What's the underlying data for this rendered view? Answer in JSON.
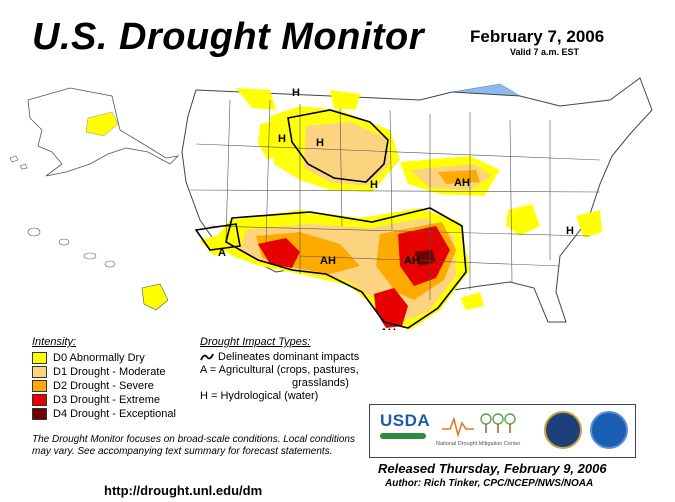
{
  "header": {
    "title": "U.S. Drought Monitor",
    "date": "February 7, 2006",
    "valid": "Valid 7 a.m. EST"
  },
  "colors": {
    "D0": "#ffff00",
    "D1": "#fcd37f",
    "D2": "#ffaa00",
    "D3": "#e60000",
    "D4": "#730000",
    "water": "#8fb8ee",
    "border": "#555555"
  },
  "legend": {
    "title": "Intensity:",
    "items": [
      {
        "code": "D0",
        "label": "D0 Abnormally Dry",
        "color": "#ffff00"
      },
      {
        "code": "D1",
        "label": "D1 Drought - Moderate",
        "color": "#fcd37f"
      },
      {
        "code": "D2",
        "label": "D2 Drought - Severe",
        "color": "#ffaa00"
      },
      {
        "code": "D3",
        "label": "D3 Drought - Extreme",
        "color": "#e60000"
      },
      {
        "code": "D4",
        "label": "D4 Drought - Exceptional",
        "color": "#730000"
      }
    ]
  },
  "impacts": {
    "title": "Drought Impact Types:",
    "delineates": "Delineates dominant impacts",
    "agricultural": "A = Agricultural (crops, pastures,",
    "agricultural_cont": "grasslands)",
    "hydrological": "H = Hydrological (water)"
  },
  "map_labels": {
    "H": "H",
    "A": "A",
    "AH": "AH"
  },
  "note": "The Drought Monitor focuses on broad-scale conditions. Local conditions may vary. See accompanying text summary for forecast statements.",
  "url": "http://drought.unl.edu/dm",
  "logos": {
    "usda": "USDA",
    "ndmc": "National Drought Mitigation Center"
  },
  "released": "Released Thursday, February 9, 2006",
  "author": "Author: Rich Tinker, CPC/NCEP/NWS/NOAA"
}
